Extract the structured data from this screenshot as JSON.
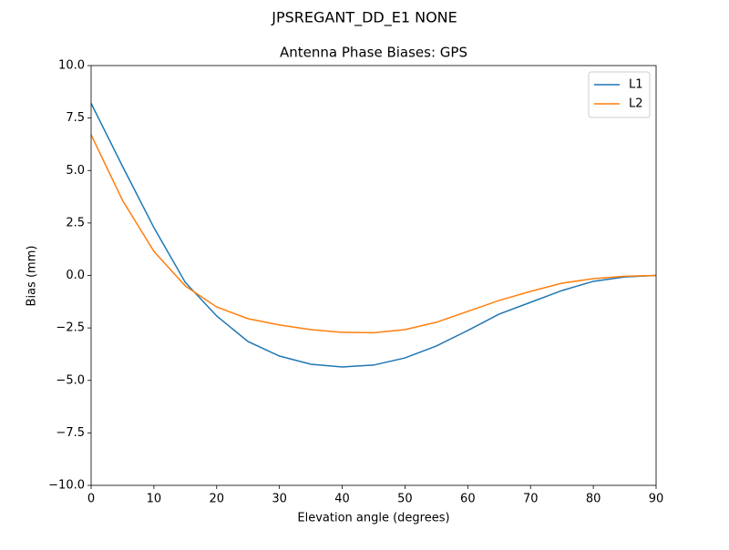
{
  "chart_data": {
    "type": "line",
    "suptitle": "JPSREGANT_DD_E1 NONE",
    "title": "Antenna Phase Biases: GPS",
    "x_label": "Elevation angle (degrees)",
    "y_label": "Bias (mm)",
    "x": [
      0,
      5,
      10,
      15,
      20,
      25,
      30,
      35,
      40,
      45,
      50,
      55,
      60,
      65,
      70,
      75,
      80,
      85,
      90
    ],
    "series": [
      {
        "name": "L1",
        "color": "#1f77b4",
        "values": [
          8.2,
          5.2,
          2.28,
          -0.33,
          -1.93,
          -3.15,
          -3.84,
          -4.23,
          -4.36,
          -4.27,
          -3.93,
          -3.36,
          -2.62,
          -1.84,
          -1.28,
          -0.72,
          -0.28,
          -0.07,
          0
        ]
      },
      {
        "name": "L2",
        "color": "#ff7f0e",
        "values": [
          6.7,
          3.58,
          1.15,
          -0.5,
          -1.5,
          -2.06,
          -2.36,
          -2.58,
          -2.71,
          -2.73,
          -2.58,
          -2.23,
          -1.71,
          -1.19,
          -0.76,
          -0.37,
          -0.15,
          -0.04,
          0
        ]
      }
    ],
    "xlim": [
      0,
      90
    ],
    "xticks": [
      0,
      10,
      20,
      30,
      40,
      50,
      60,
      70,
      80,
      90
    ],
    "ylim": [
      -10,
      10
    ],
    "yticks": [
      {
        "value": -10,
        "label": "−10.0"
      },
      {
        "value": -7.5,
        "label": "−7.5"
      },
      {
        "value": -5,
        "label": "−5.0"
      },
      {
        "value": -2.5,
        "label": "−2.5"
      },
      {
        "value": 0,
        "label": "0.0"
      },
      {
        "value": 2.5,
        "label": "2.5"
      },
      {
        "value": 5,
        "label": "5.0"
      },
      {
        "value": 7.5,
        "label": "7.5"
      },
      {
        "value": 10,
        "label": "10.0"
      }
    ],
    "grid": false,
    "legend": "upper right"
  }
}
